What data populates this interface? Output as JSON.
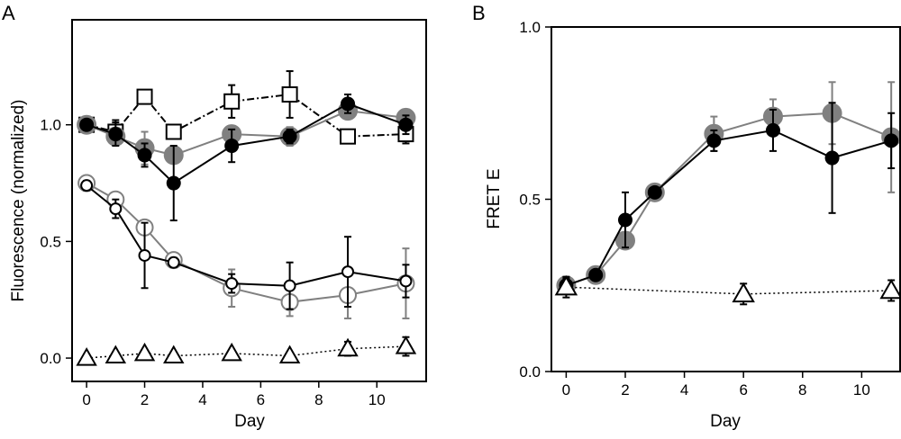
{
  "colors": {
    "black": "#000000",
    "gray": "#808080",
    "white": "#ffffff"
  },
  "chart_data": [
    {
      "type": "line",
      "panel_label": "A",
      "xlabel": "Day",
      "ylabel": "Fluorescence (normalized)",
      "xlim": [
        -0.5,
        11.7
      ],
      "ylim": [
        -0.1,
        1.45
      ],
      "xticks": [
        0,
        2,
        4,
        6,
        8,
        10
      ],
      "yticks": [
        0.0,
        0.5,
        1.0
      ],
      "ytick_labels": [
        "0.0",
        "0.5",
        "1.0"
      ],
      "grid": false,
      "series": [
        {
          "marker": "square-open",
          "line": "dashdot",
          "color": "#000000",
          "marker_fill": "#ffffff",
          "marker_size": 16,
          "x": [
            0,
            1,
            2,
            3,
            5,
            7,
            9,
            11
          ],
          "y": [
            1.0,
            0.97,
            1.12,
            0.97,
            1.1,
            1.13,
            0.95,
            0.96
          ],
          "err": [
            0.02,
            0.05,
            0.0,
            0.0,
            0.07,
            0.1,
            0.0,
            0.04
          ]
        },
        {
          "marker": "circle-filled",
          "line": "solid",
          "color": "#808080",
          "marker_fill": "#808080",
          "marker_size": 10,
          "x": [
            0,
            1,
            2,
            3,
            5,
            7,
            9,
            11
          ],
          "y": [
            1.0,
            0.95,
            0.9,
            0.87,
            0.96,
            0.95,
            1.06,
            1.03
          ],
          "err": [
            0.02,
            0.03,
            0.07,
            0.0,
            0.0,
            0.04,
            0.0,
            0.0
          ]
        },
        {
          "marker": "circle-filled",
          "line": "solid",
          "color": "#000000",
          "marker_fill": "#000000",
          "marker_size": 7,
          "x": [
            0,
            1,
            2,
            3,
            5,
            7,
            9,
            11
          ],
          "y": [
            1.0,
            0.96,
            0.87,
            0.75,
            0.91,
            0.95,
            1.09,
            1.0
          ],
          "err": [
            0.02,
            0.05,
            0.05,
            0.16,
            0.07,
            0.03,
            0.04,
            0.04
          ]
        },
        {
          "marker": "circle-open",
          "line": "solid",
          "color": "#808080",
          "marker_fill": "#ffffff",
          "marker_size": 9,
          "x": [
            0,
            1,
            2,
            3,
            5,
            7,
            9,
            11
          ],
          "y": [
            0.75,
            0.68,
            0.56,
            0.42,
            0.3,
            0.24,
            0.27,
            0.32
          ],
          "err": [
            0.0,
            0.0,
            0.0,
            0.0,
            0.08,
            0.06,
            0.1,
            0.15
          ]
        },
        {
          "marker": "circle-open",
          "line": "solid",
          "color": "#000000",
          "marker_fill": "#ffffff",
          "marker_size": 6,
          "x": [
            0,
            1,
            2,
            3,
            5,
            7,
            9,
            11
          ],
          "y": [
            0.74,
            0.64,
            0.44,
            0.41,
            0.32,
            0.31,
            0.37,
            0.33
          ],
          "err": [
            0.02,
            0.04,
            0.14,
            0.02,
            0.04,
            0.1,
            0.15,
            0.07
          ]
        },
        {
          "marker": "triangle-open",
          "line": "dotted",
          "color": "#000000",
          "marker_fill": "#ffffff",
          "marker_size": 10,
          "x": [
            0,
            1,
            2,
            3,
            5,
            7,
            9,
            11
          ],
          "y": [
            0.0,
            0.01,
            0.02,
            0.01,
            0.02,
            0.01,
            0.04,
            0.05
          ],
          "err": [
            0.0,
            0.0,
            0.0,
            0.0,
            0.0,
            0.0,
            0.03,
            0.04
          ]
        }
      ]
    },
    {
      "type": "line",
      "panel_label": "B",
      "xlabel": "Day",
      "ylabel": "FRET E",
      "xlim": [
        -0.5,
        11.3
      ],
      "ylim": [
        0.0,
        1.0
      ],
      "xticks": [
        0,
        2,
        4,
        6,
        8,
        10
      ],
      "yticks": [
        0.0,
        0.5,
        1.0
      ],
      "ytick_labels": [
        "0.0",
        "0.5",
        "1.0"
      ],
      "grid": false,
      "series": [
        {
          "marker": "circle-filled",
          "line": "solid",
          "color": "#808080",
          "marker_fill": "#808080",
          "marker_size": 10,
          "x": [
            0,
            1,
            2,
            3,
            5,
            7,
            9,
            11
          ],
          "y": [
            0.25,
            0.28,
            0.38,
            0.52,
            0.69,
            0.74,
            0.75,
            0.68
          ],
          "err": [
            0.02,
            0.0,
            0.0,
            0.0,
            0.05,
            0.05,
            0.09,
            0.16
          ]
        },
        {
          "marker": "circle-filled",
          "line": "solid",
          "color": "#000000",
          "marker_fill": "#000000",
          "marker_size": 7,
          "x": [
            0,
            1,
            2,
            3,
            5,
            7,
            9,
            11
          ],
          "y": [
            0.25,
            0.28,
            0.44,
            0.52,
            0.67,
            0.7,
            0.62,
            0.67
          ],
          "err": [
            0.02,
            0.0,
            0.08,
            0.0,
            0.03,
            0.06,
            0.16,
            0.08
          ]
        },
        {
          "marker": "triangle-open",
          "line": "dotted",
          "color": "#000000",
          "marker_fill": "#ffffff",
          "marker_size": 11,
          "x": [
            0,
            6,
            11
          ],
          "y": [
            0.245,
            0.225,
            0.235
          ],
          "err": [
            0.03,
            0.03,
            0.03
          ]
        }
      ]
    }
  ]
}
